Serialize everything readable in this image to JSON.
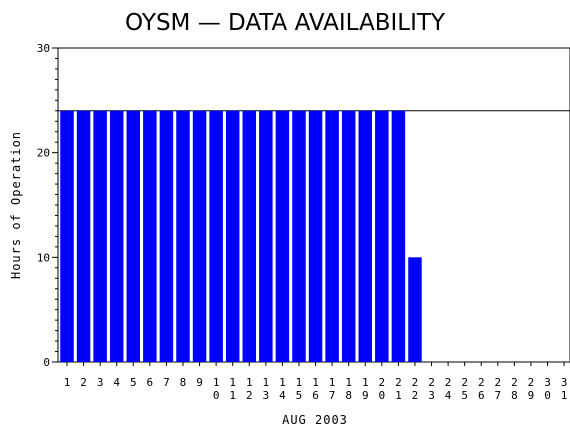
{
  "chart_data": {
    "type": "bar",
    "title": "OYSM  —  DATA AVAILABILITY",
    "xlabel": "AUG 2003",
    "ylabel": "Hours of Operation",
    "categories": [
      "1",
      "2",
      "3",
      "4",
      "5",
      "6",
      "7",
      "8",
      "9",
      "10",
      "11",
      "12",
      "13",
      "14",
      "15",
      "16",
      "17",
      "18",
      "19",
      "20",
      "21",
      "22",
      "23",
      "24",
      "25",
      "26",
      "27",
      "28",
      "29",
      "30",
      "31"
    ],
    "values": [
      24,
      24,
      24,
      24,
      24,
      24,
      24,
      24,
      24,
      24,
      24,
      24,
      24,
      24,
      24,
      24,
      24,
      24,
      24,
      24,
      24,
      10,
      0,
      0,
      0,
      0,
      0,
      0,
      0,
      0,
      0
    ],
    "ylim": [
      0,
      30
    ],
    "yticks": [
      0,
      10,
      20,
      30
    ],
    "reference_line": 24,
    "bar_color": "#0000ff",
    "grid": false
  }
}
